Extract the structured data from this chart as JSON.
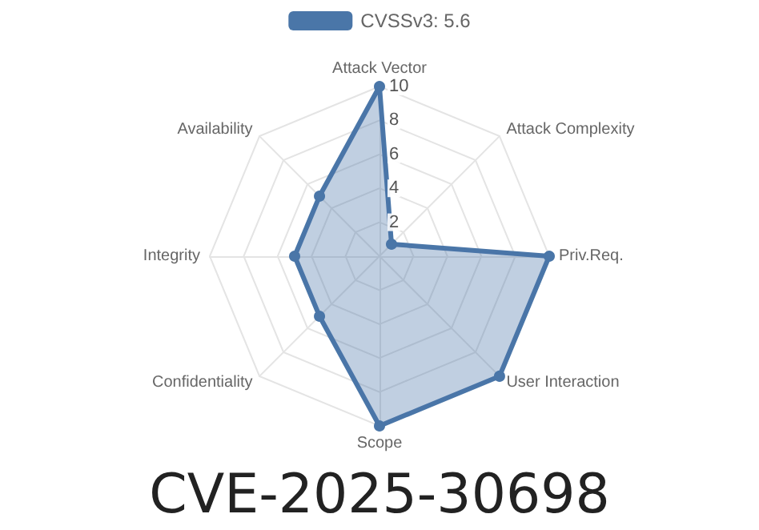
{
  "chart_data": {
    "type": "radar",
    "title": "CVE-2025-30698",
    "categories": [
      "Attack Vector",
      "Attack Complexity",
      "Priv.Req.",
      "User Interaction",
      "Scope",
      "Confidentiality",
      "Integrity",
      "Availability"
    ],
    "series": [
      {
        "name": "CVSSv3: 5.6",
        "color": "#4a76a8",
        "values": [
          10,
          1,
          10,
          10,
          10,
          5,
          5,
          5
        ]
      }
    ],
    "ylim": [
      0,
      10
    ],
    "yticks": [
      2,
      4,
      6,
      8,
      10
    ],
    "legend": "top",
    "marker": "circle",
    "grid": true
  }
}
